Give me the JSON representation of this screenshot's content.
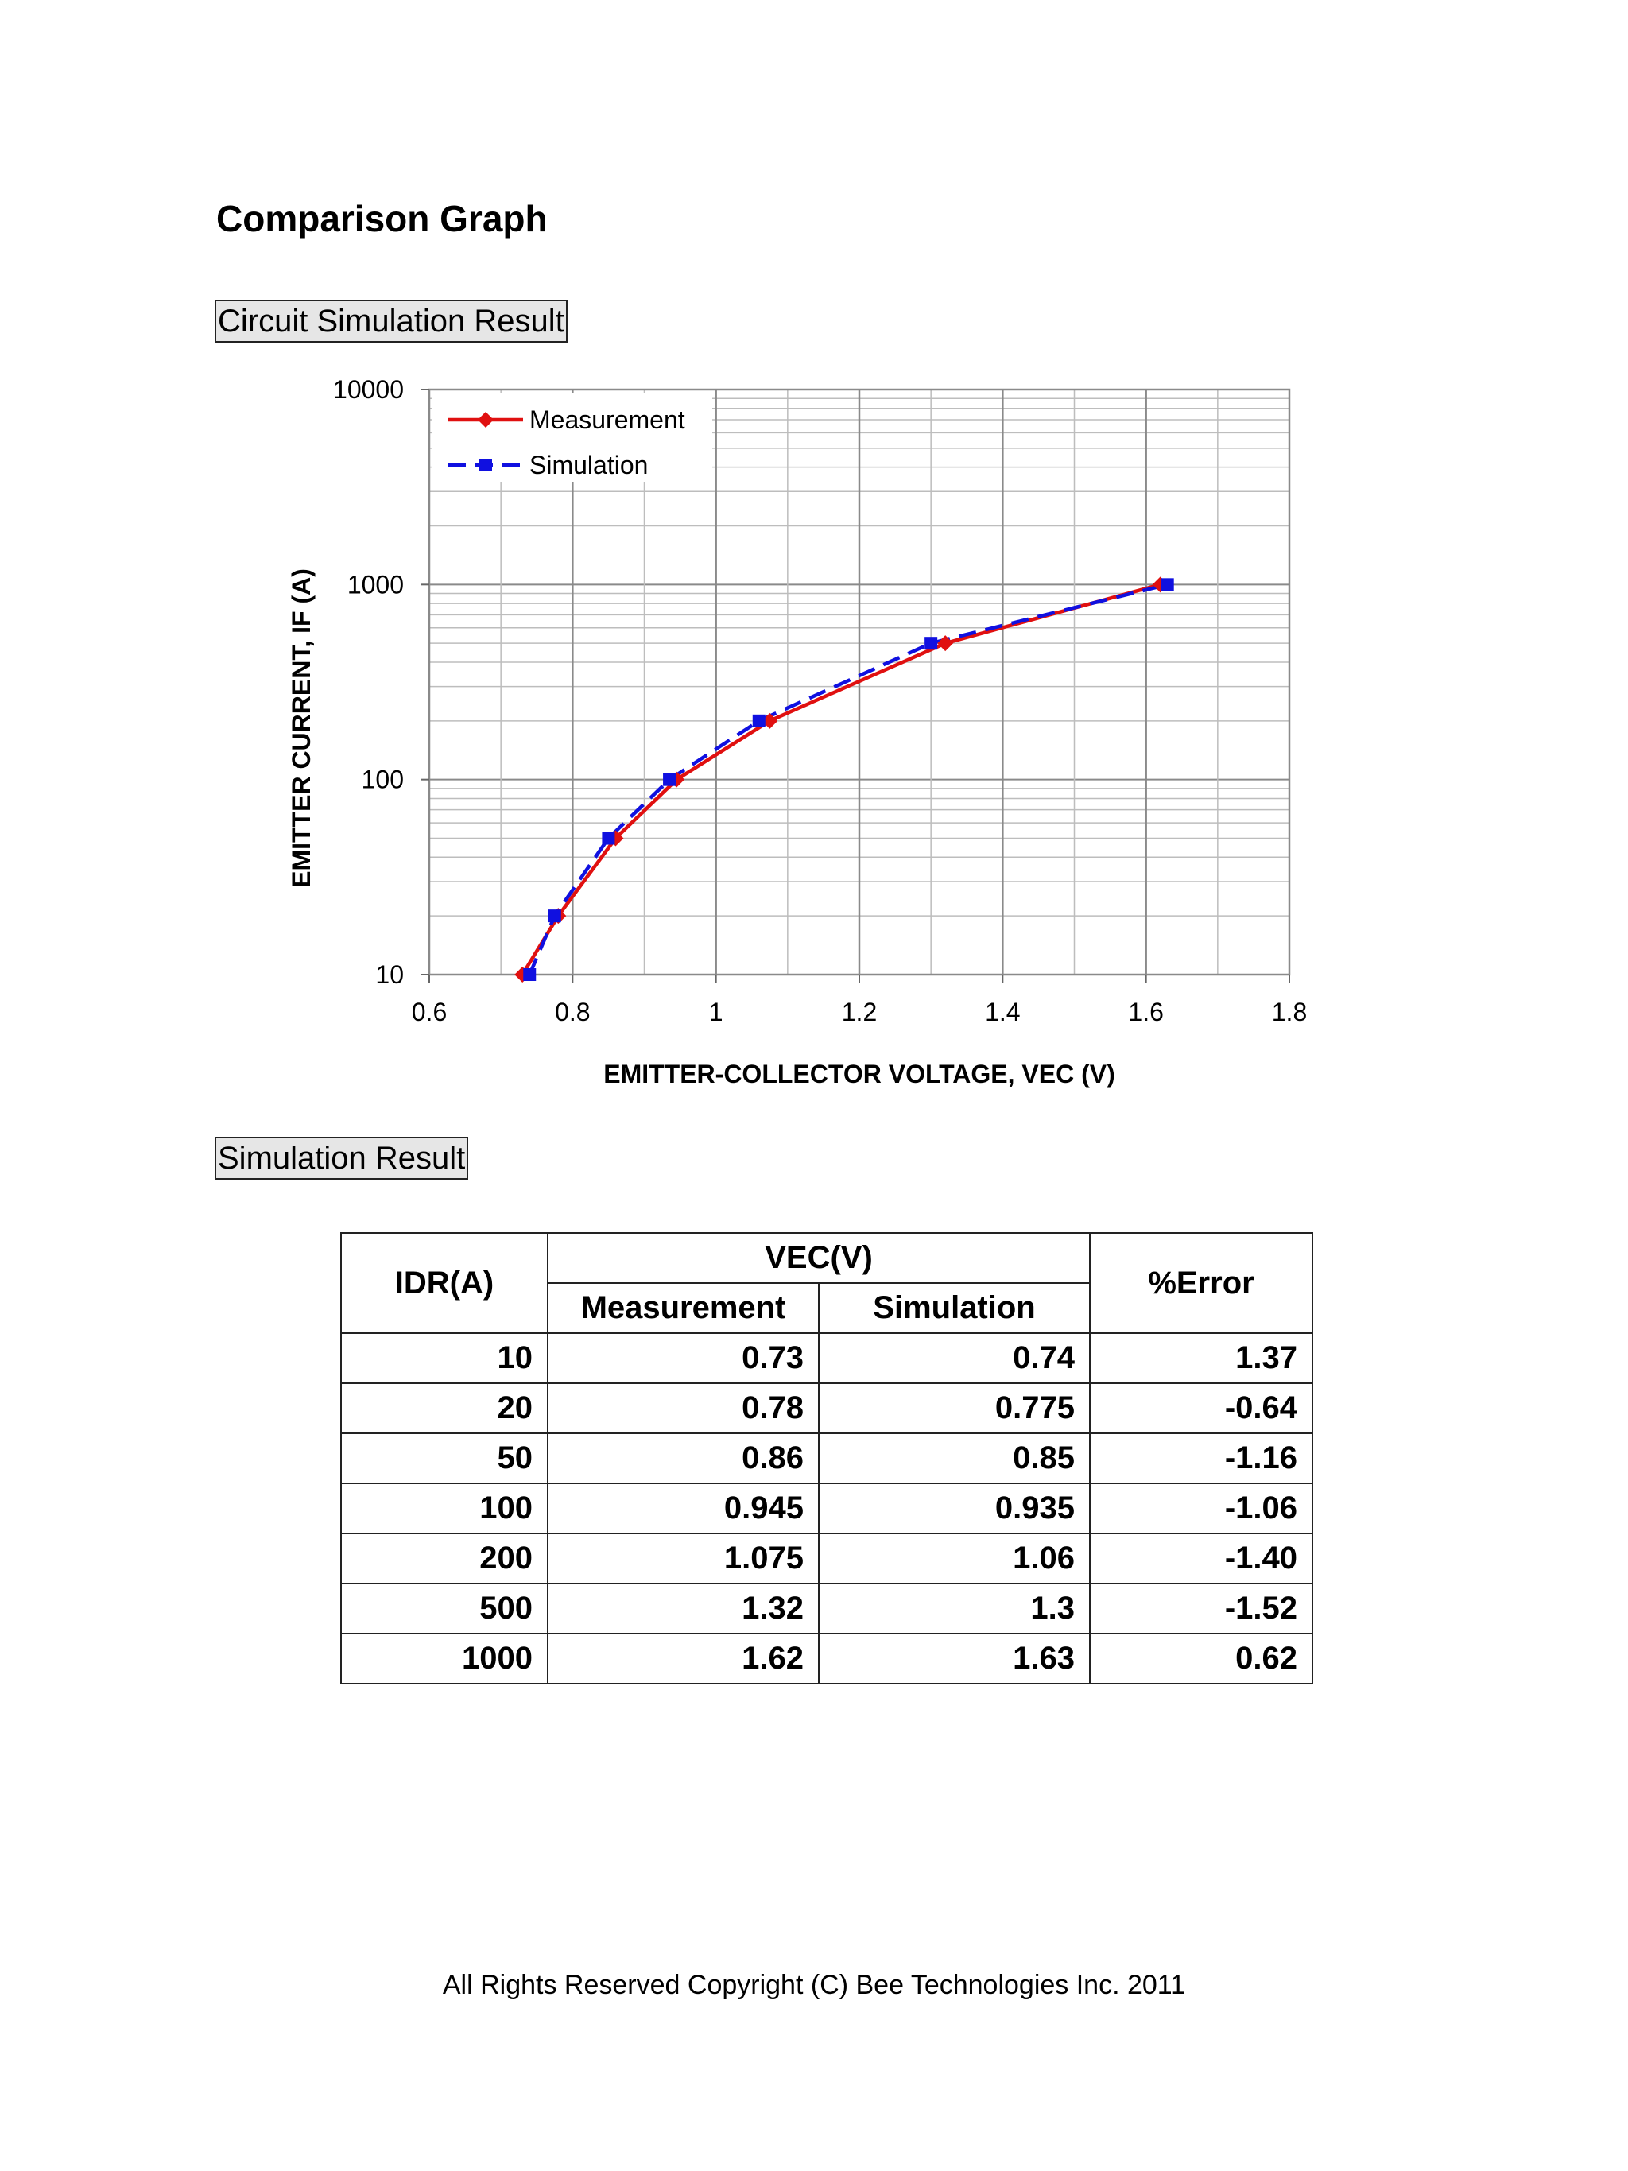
{
  "page": {
    "heading": "Comparison Graph",
    "section1_label": "Circuit Simulation Result",
    "section2_label": "Simulation Result",
    "footer": "All Rights Reserved Copyright (C) Bee Technologies Inc. 2011"
  },
  "chart_data": {
    "type": "line",
    "xlabel": "EMITTER-COLLECTOR  VOLTAGE, VEC (V)",
    "ylabel": "EMITTER CURRENT,  IF (A)",
    "xlim": [
      0.6,
      1.8
    ],
    "ylim": [
      10,
      10000
    ],
    "y_scale": "log",
    "grid": true,
    "legend_position": "top-left",
    "x_ticks": [
      "0.6",
      "0.8",
      "1",
      "1.2",
      "1.4",
      "1.6",
      "1.8"
    ],
    "y_ticks": [
      "10",
      "100",
      "1000",
      "10000"
    ],
    "series": [
      {
        "name": "Measurement",
        "color": "#e01010",
        "line_style": "solid",
        "marker": "diamond",
        "x": [
          0.73,
          0.78,
          0.86,
          0.945,
          1.075,
          1.32,
          1.62
        ],
        "y": [
          10,
          20,
          50,
          100,
          200,
          500,
          1000
        ]
      },
      {
        "name": "Simulation",
        "color": "#1010e0",
        "line_style": "dashed",
        "marker": "square",
        "x": [
          0.74,
          0.775,
          0.85,
          0.935,
          1.06,
          1.3,
          1.63
        ],
        "y": [
          10,
          20,
          50,
          100,
          200,
          500,
          1000
        ]
      }
    ]
  },
  "table": {
    "header_idr": "IDR(A)",
    "header_vec": "VEC(V)",
    "header_measurement": "Measurement",
    "header_simulation": "Simulation",
    "header_error": "%Error",
    "rows": [
      [
        "10",
        "0.73",
        "0.74",
        "1.37"
      ],
      [
        "20",
        "0.78",
        "0.775",
        "-0.64"
      ],
      [
        "50",
        "0.86",
        "0.85",
        "-1.16"
      ],
      [
        "100",
        "0.945",
        "0.935",
        "-1.06"
      ],
      [
        "200",
        "1.075",
        "1.06",
        "-1.40"
      ],
      [
        "500",
        "1.32",
        "1.3",
        "-1.52"
      ],
      [
        "1000",
        "1.62",
        "1.63",
        "0.62"
      ]
    ]
  }
}
